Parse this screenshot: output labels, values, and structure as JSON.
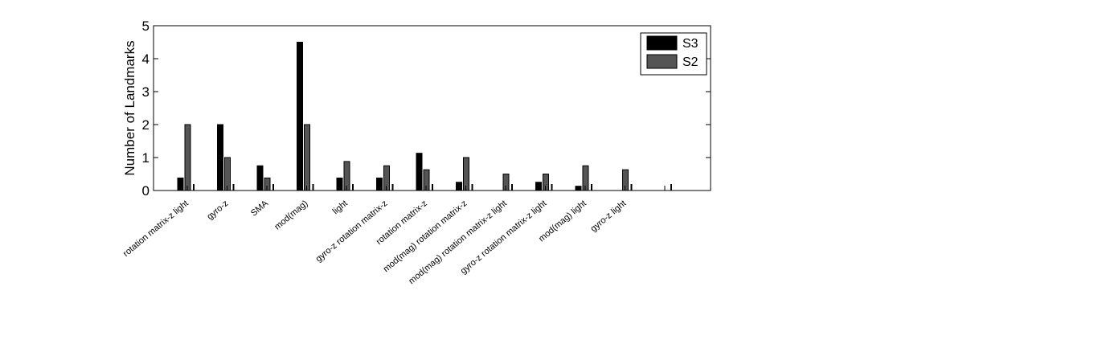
{
  "chart_data": {
    "type": "bar",
    "title": "",
    "xlabel": "",
    "ylabel": "Number of Landmarks",
    "ylim": [
      0,
      5
    ],
    "yticks": [
      0,
      1,
      2,
      3,
      4,
      5
    ],
    "grid": false,
    "legend_position": "top-right",
    "categories": [
      "rotation matrix-z  light",
      "gyro-z",
      "SMA",
      "mod(mag)",
      "light",
      "gyro-z  rotation matrix-z",
      "rotation matrix-z",
      "mod(mag)  rotation matrix-z",
      "mod(mag)  rotation matrix-z  light",
      "gyro-z  rotation matrix-z  light",
      "mod(mag)  light",
      "gyro-z  light",
      ""
    ],
    "series": [
      {
        "name": "S3",
        "color": "#000000",
        "values": [
          0.38,
          2.0,
          0.75,
          4.5,
          0.38,
          0.38,
          1.13,
          0.25,
          0,
          0.25,
          0.13,
          0,
          0
        ]
      },
      {
        "name": "S2",
        "color": "#555555",
        "values": [
          2.0,
          1.0,
          0.38,
          2.0,
          0.88,
          0.75,
          0.63,
          1.0,
          0.5,
          0.5,
          0.75,
          0.63,
          0
        ]
      }
    ]
  }
}
